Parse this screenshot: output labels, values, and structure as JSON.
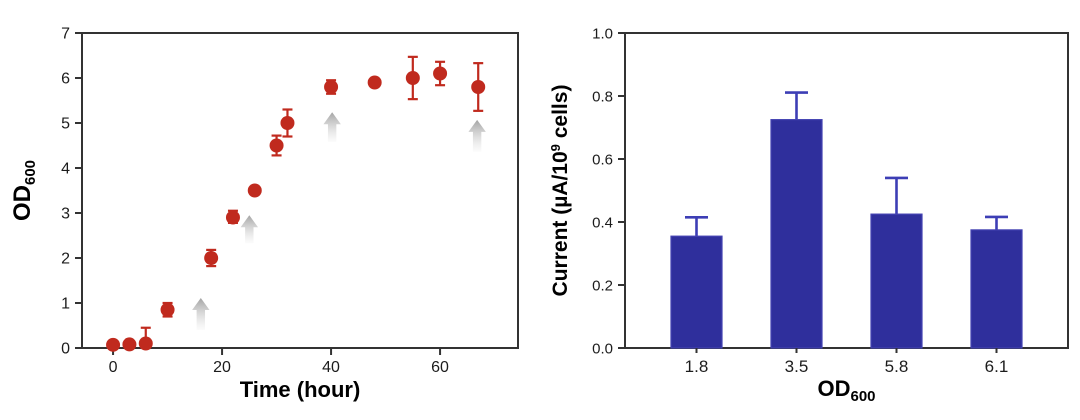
{
  "figure": {
    "background": "#ffffff",
    "frame_color": "#333333",
    "tick_label_color": "#1c1c1c",
    "axis_label_color": "#000000"
  },
  "chart_data": [
    {
      "type": "scatter",
      "name": "growth-curve",
      "xlabel": "Time (hour)",
      "ylabel_main": "OD",
      "ylabel_sub": "600",
      "xlim": [
        -5.7,
        74.3
      ],
      "ylim": [
        0,
        7
      ],
      "xticks": [
        0,
        20,
        40,
        60
      ],
      "yticks": [
        0,
        1,
        2,
        3,
        4,
        5,
        6,
        7
      ],
      "grid": false,
      "marker_color": "#c02a1e",
      "arrow_color_top": "#9e9e9e",
      "arrow_color_bottom": "#d8d8d8",
      "points": [
        {
          "x": 0,
          "y": 0.07,
          "err_up": 0,
          "err_down": 0
        },
        {
          "x": 3,
          "y": 0.08,
          "err_up": 0,
          "err_down": 0
        },
        {
          "x": 6,
          "y": 0.1,
          "err_up": 0.35,
          "err_down": 0.1
        },
        {
          "x": 10,
          "y": 0.85,
          "err_up": 0.15,
          "err_down": 0.15
        },
        {
          "x": 18,
          "y": 2.0,
          "err_up": 0.18,
          "err_down": 0.18
        },
        {
          "x": 22,
          "y": 2.9,
          "err_up": 0.15,
          "err_down": 0.12
        },
        {
          "x": 26,
          "y": 3.5,
          "err_up": 0,
          "err_down": 0
        },
        {
          "x": 30,
          "y": 4.5,
          "err_up": 0.22,
          "err_down": 0.22
        },
        {
          "x": 32,
          "y": 5.0,
          "err_up": 0.3,
          "err_down": 0.3
        },
        {
          "x": 40,
          "y": 5.8,
          "err_up": 0.15,
          "err_down": 0.15
        },
        {
          "x": 48,
          "y": 5.9,
          "err_up": 0,
          "err_down": 0
        },
        {
          "x": 55,
          "y": 6.0,
          "err_up": 0.47,
          "err_down": 0.47
        },
        {
          "x": 60,
          "y": 6.1,
          "err_up": 0.26,
          "err_down": 0.26
        },
        {
          "x": 67,
          "y": 5.8,
          "err_up": 0.53,
          "err_down": 0.53
        }
      ],
      "arrows": [
        {
          "x": 16.1,
          "y_bottom": 0.4,
          "y_top": 1.11
        },
        {
          "x": 25.0,
          "y_bottom": 2.33,
          "y_top": 2.95
        },
        {
          "x": 40.2,
          "y_bottom": 4.58,
          "y_top": 5.24
        },
        {
          "x": 66.8,
          "y_bottom": 4.36,
          "y_top": 5.07
        }
      ]
    },
    {
      "type": "bar",
      "name": "current-vs-od",
      "categories": [
        "1.8",
        "3.5",
        "5.8",
        "6.1"
      ],
      "values": [
        0.355,
        0.725,
        0.425,
        0.375
      ],
      "errors_up": [
        0.06,
        0.086,
        0.115,
        0.041
      ],
      "xlabel_main": "OD",
      "xlabel_sub": "600",
      "ylabel_prefix": "Current (µA/10",
      "ylabel_sup": "9",
      "ylabel_suffix": " cells)",
      "ylim": [
        0,
        1.0
      ],
      "yticks": [
        "0.0",
        "0.2",
        "0.4",
        "0.6",
        "0.8",
        "1.0"
      ],
      "grid": false,
      "bar_color": "#2f2f9c",
      "bar_edge_color": "#4443b2",
      "error_color": "#3d3eb5"
    }
  ]
}
